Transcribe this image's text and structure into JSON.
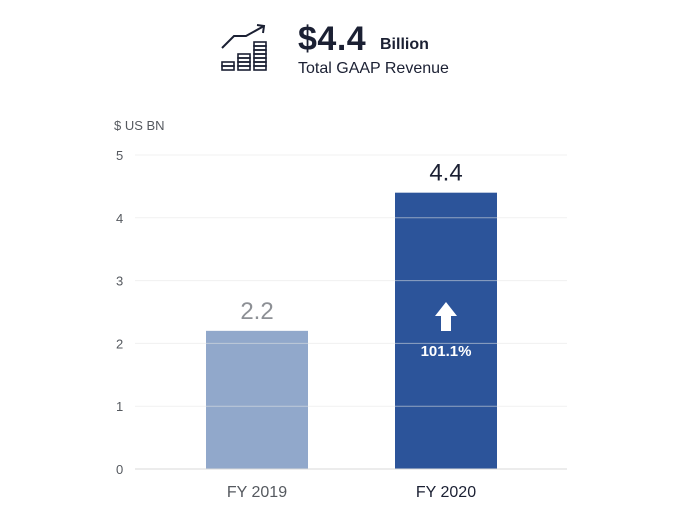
{
  "header": {
    "icon": "revenue-growth-icon",
    "amount": "$4.4",
    "unit": "Billion",
    "subtitle": "Total GAAP Revenue"
  },
  "colors": {
    "bar_prior": "#91a8cb",
    "bar_current": "#2c549a",
    "label_prior": "#8d9095",
    "label_current": "#1b2033",
    "grid": "#e6e6e6",
    "text": "#55595f"
  },
  "chart_data": {
    "type": "bar",
    "title": "Total GAAP Revenue",
    "ylabel": "$ US BN",
    "xlabel": "",
    "categories": [
      "FY 2019",
      "FY 2020"
    ],
    "values": [
      2.2,
      4.4
    ],
    "data_labels": [
      "2.2",
      "4.4"
    ],
    "yticks": [
      0,
      1,
      2,
      3,
      4,
      5
    ],
    "ylim": [
      0,
      5
    ],
    "grid": true,
    "annotations": [
      {
        "category": "FY 2020",
        "icon": "up-arrow-icon",
        "text": "101.1%"
      }
    ]
  }
}
